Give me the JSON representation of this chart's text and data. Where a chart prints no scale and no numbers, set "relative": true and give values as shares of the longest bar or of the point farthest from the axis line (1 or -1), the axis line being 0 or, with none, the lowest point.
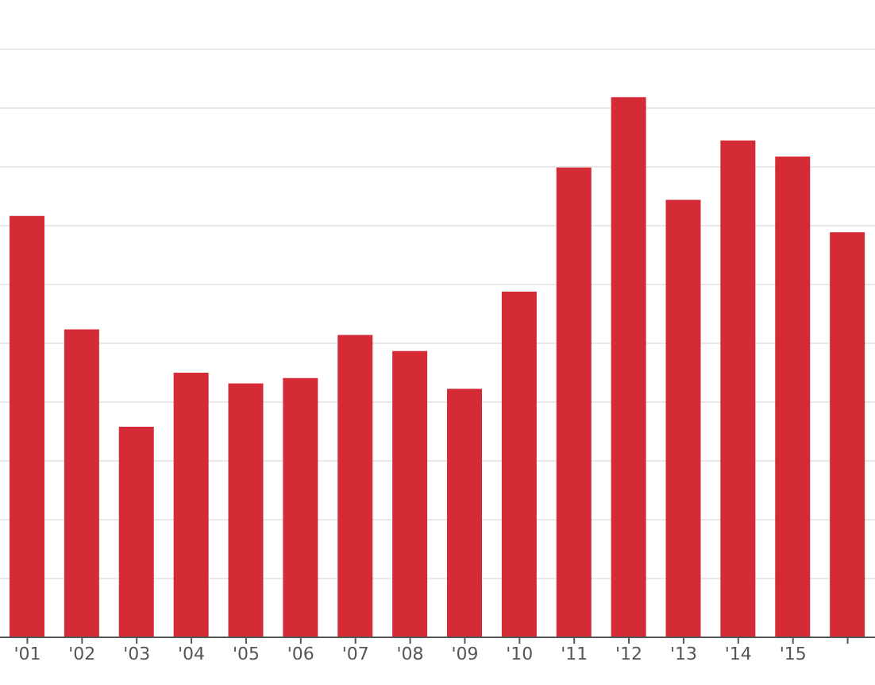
{
  "chart_data": {
    "type": "bar",
    "relative": true,
    "categories": [
      "'01",
      "'02",
      "'03",
      "'04",
      "'05",
      "'06",
      "'07",
      "'08",
      "'09",
      "'10",
      "'11",
      "'12",
      "'13",
      "'14",
      "'15",
      null
    ],
    "values": [
      0.78,
      0.57,
      0.39,
      0.49,
      0.47,
      0.48,
      0.56,
      0.53,
      0.46,
      0.64,
      0.87,
      1,
      0.81,
      0.92,
      0.89,
      0.75
    ],
    "color": "#d42b36",
    "grid": "y"
  }
}
